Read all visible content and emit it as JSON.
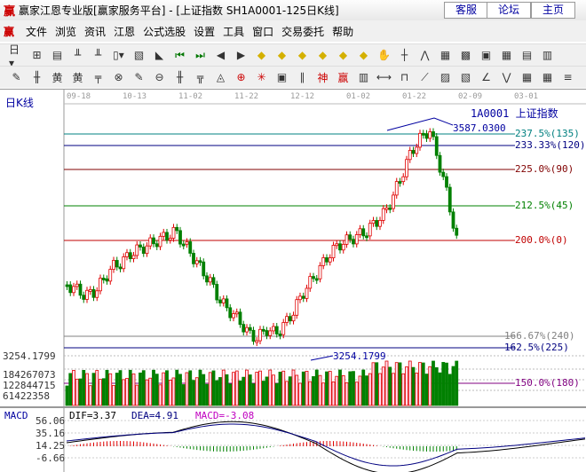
{
  "window": {
    "title": "赢家江恩专业版[赢家服务平台] - [上证指数  SH1A0001-125日K线]",
    "logo": "赢",
    "buttons": [
      "客服",
      "论坛",
      "主页"
    ]
  },
  "menu": {
    "logo": "赢",
    "items": [
      "文件",
      "浏览",
      "资讯",
      "江恩",
      "公式选股",
      "设置",
      "工具",
      "窗口",
      "交易委托",
      "帮助"
    ]
  },
  "chart": {
    "period_label": "日K线",
    "dates": [
      "09-18",
      "10-13",
      "11-02",
      "11-22",
      "12-12",
      "01-02",
      "01-22",
      "02-09",
      "03-01"
    ],
    "symbol": "1A0001  上证指数",
    "high_marker": "3587.0300",
    "low_marker": "3254.1799",
    "left_price": "3254.1799",
    "gann_lines": [
      {
        "label": "237.5%(135)",
        "color": "#008080"
      },
      {
        "label": "233.33%(120)",
        "color": "#000080"
      },
      {
        "label": "225.0%(90)",
        "color": "#800000"
      },
      {
        "label": "212.5%(45)",
        "color": "#008000"
      },
      {
        "label": "200.0%(0)",
        "color": "#c00000"
      },
      {
        "label": "166.67%(240)",
        "color": "#808080"
      },
      {
        "label": "162.5%(225)",
        "color": "#000080"
      },
      {
        "label": "150.0%(180)",
        "color": "#800080"
      }
    ],
    "volume_ticks": [
      "184267073",
      "122844715",
      "61422358"
    ],
    "macd": {
      "name": "MACD",
      "dif": "DIF=3.37",
      "dea": "DEA=4.91",
      "macd": "MACD=-3.08",
      "ticks": [
        "56.06",
        "35.16",
        "14.25",
        "-6.66"
      ]
    },
    "colors": {
      "up": "#e00000",
      "down": "#008000"
    }
  }
}
